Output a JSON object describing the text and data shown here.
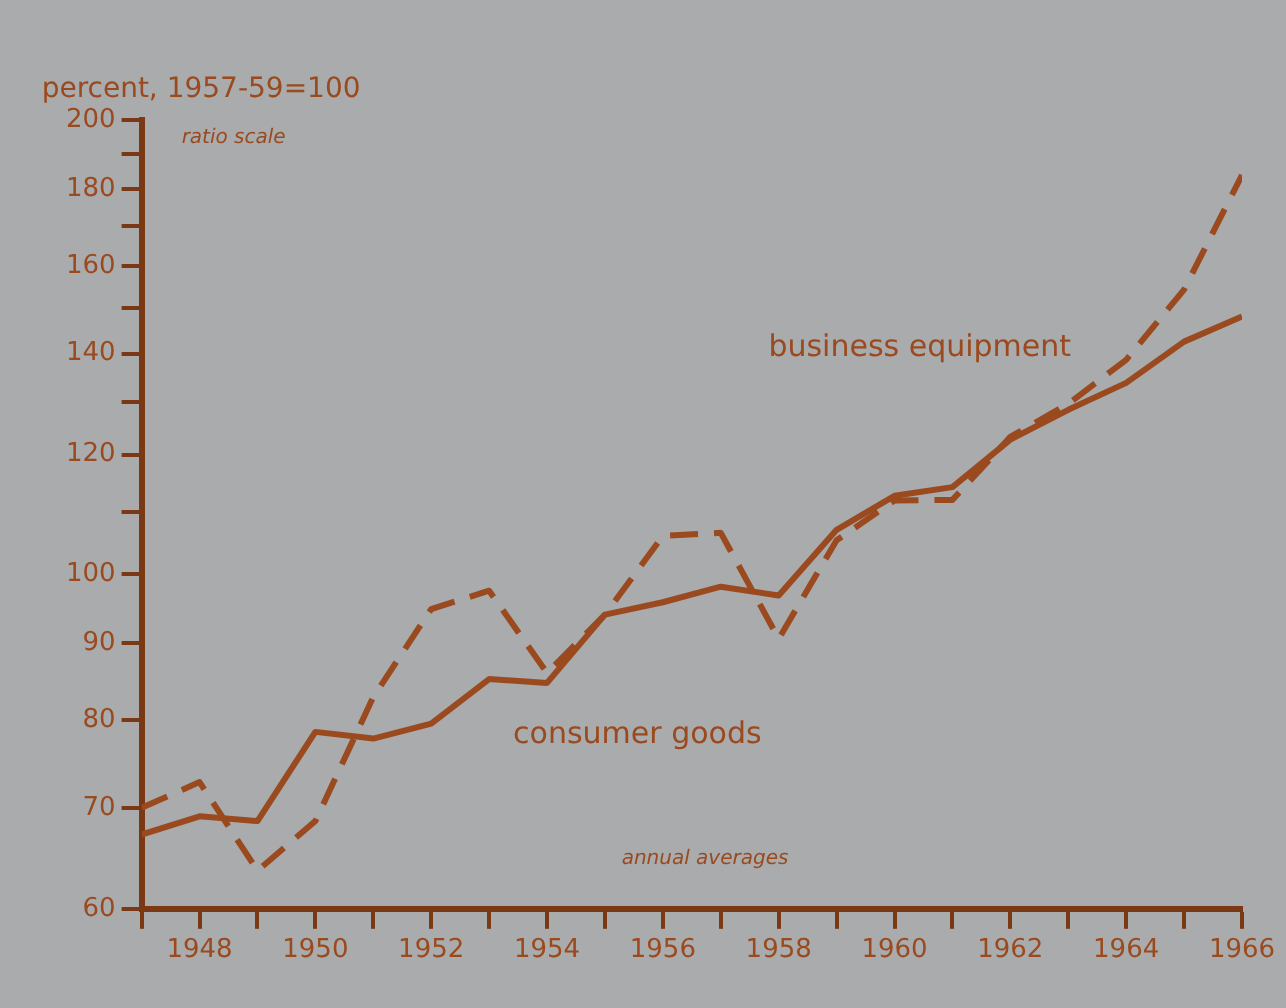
{
  "chart_data": {
    "type": "line",
    "ylabel": "percent, 1957-59=100",
    "annotations": [
      "ratio scale",
      "annual averages"
    ],
    "x": [
      1947,
      1948,
      1949,
      1950,
      1951,
      1952,
      1953,
      1954,
      1955,
      1956,
      1957,
      1958,
      1959,
      1960,
      1961,
      1962,
      1963,
      1964,
      1965,
      1966
    ],
    "series": [
      {
        "name": "consumer goods",
        "color": "#9a4a1e",
        "line_style": "solid",
        "values": [
          67.2,
          69.1,
          68.6,
          78.6,
          77.8,
          79.6,
          85.2,
          84.7,
          94.0,
          95.8,
          98.1,
          96.8,
          107.0,
          112.7,
          114.2,
          122.8,
          128.5,
          133.9,
          142.6,
          148.2
        ]
      },
      {
        "name": "business equipment",
        "color": "#9a4a1e",
        "line_style": "dashed",
        "values": [
          70.0,
          72.8,
          63.6,
          68.6,
          82.9,
          94.8,
          97.5,
          86.0,
          94.0,
          106.0,
          106.5,
          90.6,
          105.3,
          111.9,
          112.0,
          123.3,
          129.7,
          138.7,
          154.4,
          183.9
        ]
      }
    ],
    "log": true,
    "ylim": [
      60,
      200
    ],
    "yticks": [
      60,
      70,
      80,
      90,
      100,
      {
        "value": 110,
        "label": null
      },
      120,
      {
        "value": 130,
        "label": null
      },
      140,
      {
        "value": 150,
        "label": null
      },
      160,
      {
        "value": 170,
        "label": null
      },
      180,
      {
        "value": 190,
        "label": null
      },
      200
    ],
    "xlim": [
      1947,
      1966
    ],
    "xticks": [
      {
        "value": 1947,
        "label": null
      },
      1948,
      {
        "value": 1949,
        "label": null
      },
      1950,
      {
        "value": 1951,
        "label": null
      },
      1952,
      {
        "value": 1953,
        "label": null
      },
      1954,
      {
        "value": 1955,
        "label": null
      },
      1956,
      {
        "value": 1957,
        "label": null
      },
      1958,
      {
        "value": 1959,
        "label": null
      },
      1960,
      {
        "value": 1961,
        "label": null
      },
      1962,
      {
        "value": 1963,
        "label": null
      },
      1964,
      {
        "value": 1965,
        "label": null
      },
      1966
    ],
    "grid": false,
    "legend": false,
    "marker": "none"
  }
}
